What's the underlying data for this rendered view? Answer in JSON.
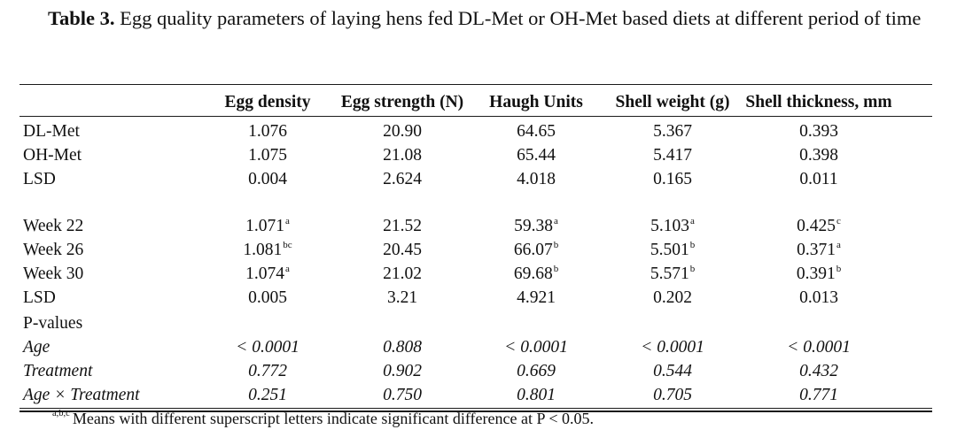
{
  "caption": {
    "label": "Table 3.",
    "text": "Egg quality parameters of laying hens fed DL-Met or OH-Met based diets at different period of time"
  },
  "table": {
    "headers": [
      "",
      "Egg density",
      "Egg strength (N)",
      "Haugh Units",
      "Shell weight (g)",
      "Shell thickness, mm"
    ],
    "rows": [
      {
        "label": "DL-Met",
        "italic": false,
        "cells": [
          {
            "v": "1.076"
          },
          {
            "v": "20.90"
          },
          {
            "v": "64.65"
          },
          {
            "v": "5.367"
          },
          {
            "v": "0.393"
          }
        ]
      },
      {
        "label": "OH-Met",
        "italic": false,
        "cells": [
          {
            "v": "1.075"
          },
          {
            "v": "21.08"
          },
          {
            "v": "65.44"
          },
          {
            "v": "5.417"
          },
          {
            "v": "0.398"
          }
        ]
      },
      {
        "label": "LSD",
        "italic": false,
        "cells": [
          {
            "v": "0.004"
          },
          {
            "v": "2.624"
          },
          {
            "v": "4.018"
          },
          {
            "v": "0.165"
          },
          {
            "v": "0.011"
          }
        ]
      },
      {
        "label": "Week 22",
        "italic": false,
        "cells": [
          {
            "v": "1.071",
            "sup": "a"
          },
          {
            "v": "21.52"
          },
          {
            "v": "59.38",
            "sup": "a"
          },
          {
            "v": "5.103",
            "sup": "a"
          },
          {
            "v": "0.425",
            "sup": "c"
          }
        ]
      },
      {
        "label": "Week 26",
        "italic": false,
        "cells": [
          {
            "v": "1.081",
            "sup": "bc"
          },
          {
            "v": "20.45"
          },
          {
            "v": "66.07",
            "sup": "b"
          },
          {
            "v": "5.501",
            "sup": "b"
          },
          {
            "v": "0.371",
            "sup": "a"
          }
        ]
      },
      {
        "label": "Week 30",
        "italic": false,
        "cells": [
          {
            "v": "1.074",
            "sup": "a"
          },
          {
            "v": "21.02"
          },
          {
            "v": "69.68",
            "sup": "b"
          },
          {
            "v": "5.571",
            "sup": "b"
          },
          {
            "v": "0.391",
            "sup": "b"
          }
        ]
      },
      {
        "label": "LSD",
        "italic": false,
        "cells": [
          {
            "v": "0.005"
          },
          {
            "v": "3.21"
          },
          {
            "v": "4.921"
          },
          {
            "v": "0.202"
          },
          {
            "v": "0.013"
          }
        ]
      },
      {
        "label": "P-values",
        "italic": false,
        "cells": []
      },
      {
        "label": "Age",
        "italic": true,
        "cells": [
          {
            "v": "< 0.0001"
          },
          {
            "v": "0.808"
          },
          {
            "v": "< 0.0001"
          },
          {
            "v": "< 0.0001"
          },
          {
            "v": "< 0.0001"
          }
        ]
      },
      {
        "label": "Treatment",
        "italic": true,
        "cells": [
          {
            "v": "0.772"
          },
          {
            "v": "0.902"
          },
          {
            "v": "0.669"
          },
          {
            "v": "0.544"
          },
          {
            "v": "0.432"
          }
        ]
      },
      {
        "label": "Age × Treatment",
        "italic": true,
        "cells": [
          {
            "v": "0.251"
          },
          {
            "v": "0.750"
          },
          {
            "v": "0.801"
          },
          {
            "v": "0.705"
          },
          {
            "v": "0.771"
          }
        ]
      }
    ]
  },
  "footnote": {
    "sup": "a,b,c",
    "text": "Means with different superscript letters indicate significant difference at P < 0.05."
  }
}
